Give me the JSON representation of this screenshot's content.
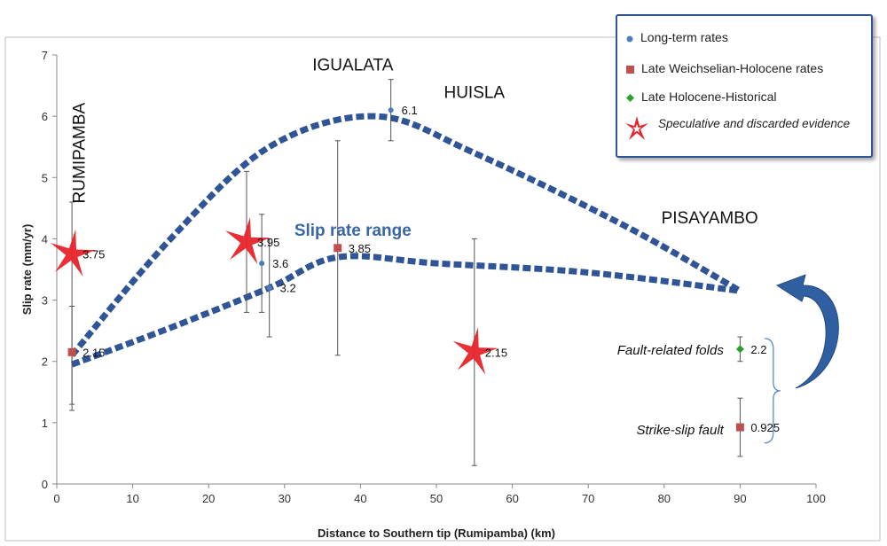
{
  "chart_data": {
    "type": "scatter",
    "xlabel": "Distance to Southern tip (Rumipamba) (km)",
    "ylabel": "Slip rate (mm/yr)",
    "xlim": [
      0,
      100
    ],
    "ylim": [
      0,
      7
    ],
    "xticks": [
      0,
      10,
      20,
      30,
      40,
      50,
      60,
      70,
      80,
      90,
      100
    ],
    "yticks": [
      0,
      1,
      2,
      3,
      4,
      5,
      6,
      7
    ],
    "grid": false,
    "legend_position": "top-right",
    "series": [
      {
        "name": "Long-term rates",
        "marker": "circle",
        "color": "#4a7ebb",
        "points": [
          {
            "x": 27,
            "y": 3.6,
            "err_low": 2.8,
            "err_high": 4.4,
            "label": "3.6"
          },
          {
            "x": 28,
            "y": 3.2,
            "err_low": 2.4,
            "err_high": 4.0,
            "label": "3.2"
          },
          {
            "x": 44,
            "y": 6.1,
            "err_low": 5.6,
            "err_high": 6.6,
            "label": "6.1"
          }
        ]
      },
      {
        "name": "Late Weichselian-Holocene rates",
        "marker": "square",
        "color": "#c0504d",
        "points": [
          {
            "x": 2,
            "y": 2.15,
            "err_low": 1.2,
            "err_high": 2.9,
            "label": "2.15"
          },
          {
            "x": 37,
            "y": 3.85,
            "err_low": 2.1,
            "err_high": 5.6,
            "label": "3.85"
          },
          {
            "x": 90,
            "y": 0.925,
            "err_low": 0.45,
            "err_high": 1.4,
            "label": "0.925"
          }
        ]
      },
      {
        "name": "Late Holocene-Historical",
        "marker": "diamond",
        "color": "#2ca02c",
        "points": [
          {
            "x": 90,
            "y": 2.2,
            "err_low": 2.0,
            "err_high": 2.4,
            "label": "2.2"
          }
        ]
      },
      {
        "name": "Speculative and discarded evidence",
        "marker": "star",
        "color": "#e8242b",
        "points": [
          {
            "x": 2,
            "y": 3.75,
            "err_low": 1.3,
            "err_high": 4.6,
            "label": "3.75"
          },
          {
            "x": 25,
            "y": 3.95,
            "err_low": 2.8,
            "err_high": 5.1,
            "label": "3.95"
          },
          {
            "x": 55,
            "y": 2.15,
            "err_low": 0.3,
            "err_high": 4.0,
            "label": "2.15"
          }
        ]
      }
    ],
    "range_envelope": {
      "label": "Slip rate range",
      "upper": [
        [
          2,
          2.1
        ],
        [
          15,
          4.0
        ],
        [
          28,
          5.5
        ],
        [
          42,
          6.0
        ],
        [
          55,
          5.4
        ],
        [
          75,
          4.2
        ],
        [
          90,
          3.15
        ]
      ],
      "lower": [
        [
          2,
          1.95
        ],
        [
          15,
          2.55
        ],
        [
          28,
          3.2
        ],
        [
          37,
          3.7
        ],
        [
          50,
          3.6
        ],
        [
          70,
          3.45
        ],
        [
          90,
          3.15
        ]
      ]
    },
    "site_labels": [
      {
        "text": "RUMIPAMBA",
        "x": 3,
        "y": 5.4,
        "rotate": true
      },
      {
        "text": "IGUALATA",
        "x": 39,
        "y": 6.75
      },
      {
        "text": "HUISLA",
        "x": 55,
        "y": 6.3
      },
      {
        "text": "PISAYAMBO",
        "x": 86,
        "y": 4.25
      }
    ],
    "annotations": [
      {
        "text": "Fault-related folds",
        "italic": true,
        "x": 89,
        "y": 2.2
      },
      {
        "text": "Strike-slip fault",
        "italic": true,
        "x": 89,
        "y": 0.9
      }
    ]
  },
  "legend": {
    "items": [
      {
        "label": "Long-term rates",
        "marker": "circle",
        "color": "#4a7ebb"
      },
      {
        "label": "Late Weichselian-Holocene rates",
        "marker": "square",
        "color": "#c0504d"
      },
      {
        "label": "Late Holocene-Historical",
        "marker": "diamond",
        "color": "#2ca02c"
      },
      {
        "label": "Speculative and discarded evidence",
        "marker": "star",
        "color": "#e8242b"
      }
    ]
  },
  "colors": {
    "envelope": "#2f5597",
    "arrow": "#2f5fa0",
    "error_bar": "#555555",
    "axis": "#888888"
  }
}
